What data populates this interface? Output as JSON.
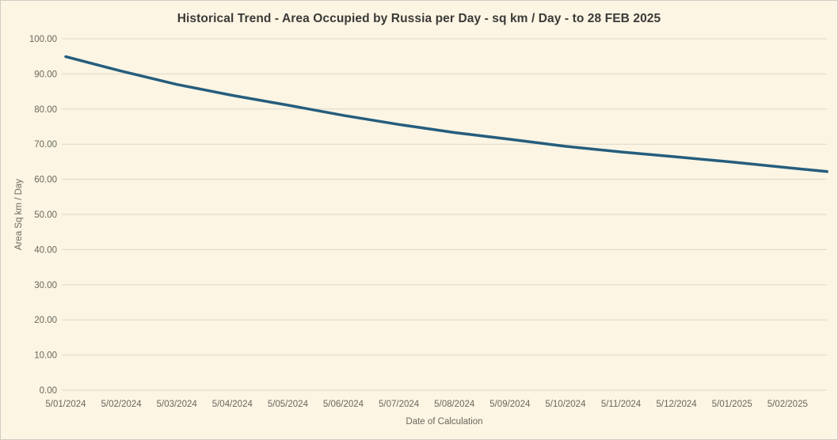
{
  "colors": {
    "background": "#FCF5E4",
    "line": "#255D7D",
    "gridline": "#DBD7CB",
    "title_text": "#3B3A37",
    "axis_text": "#6A675C",
    "border": "#CECCC3"
  },
  "chart": {
    "title": "Historical Trend - Area Occupied by Russia per Day - sq km / Day - to 28 FEB 2025",
    "x_axis_title": "Date of Calculation",
    "y_axis_title": "Area Sq km / Day"
  },
  "chart_data": {
    "type": "line",
    "title": "Historical Trend - Area Occupied by Russia per Day - sq km / Day - to 28 FEB 2025",
    "xlabel": "Date of Calculation",
    "ylabel": "Area Sq km / Day",
    "ylim": [
      0,
      100
    ],
    "y_tick_step": 10,
    "y_tick_labels": [
      "0.00",
      "10.00",
      "20.00",
      "30.00",
      "40.00",
      "50.00",
      "60.00",
      "70.00",
      "80.00",
      "90.00",
      "100.00"
    ],
    "x_tick_labels": [
      "5/01/2024",
      "5/02/2024",
      "5/03/2024",
      "5/04/2024",
      "5/05/2024",
      "5/06/2024",
      "5/07/2024",
      "5/08/2024",
      "5/09/2024",
      "5/10/2024",
      "5/11/2024",
      "5/12/2024",
      "5/01/2025",
      "5/02/2025"
    ],
    "grid": "horizontal",
    "legend": "none",
    "series": [
      {
        "points": [
          {
            "m": 0,
            "date": "5/01/2024",
            "y": 94.9
          },
          {
            "m": 1,
            "date": "5/02/2024",
            "y": 90.8
          },
          {
            "m": 2,
            "date": "5/03/2024",
            "y": 87.0
          },
          {
            "m": 3,
            "date": "5/04/2024",
            "y": 83.9
          },
          {
            "m": 4,
            "date": "5/05/2024",
            "y": 81.1
          },
          {
            "m": 5,
            "date": "5/06/2024",
            "y": 78.2
          },
          {
            "m": 6,
            "date": "5/07/2024",
            "y": 75.6
          },
          {
            "m": 7,
            "date": "5/08/2024",
            "y": 73.3
          },
          {
            "m": 8,
            "date": "5/09/2024",
            "y": 71.4
          },
          {
            "m": 9,
            "date": "5/10/2024",
            "y": 69.4
          },
          {
            "m": 10,
            "date": "5/11/2024",
            "y": 67.8
          },
          {
            "m": 11,
            "date": "5/12/2024",
            "y": 66.4
          },
          {
            "m": 12,
            "date": "5/01/2025",
            "y": 64.9
          },
          {
            "m": 13,
            "date": "5/02/2025",
            "y": 63.3
          },
          {
            "m": 13.71,
            "date": "28 FEB 2025",
            "y": 62.2
          }
        ]
      }
    ]
  }
}
